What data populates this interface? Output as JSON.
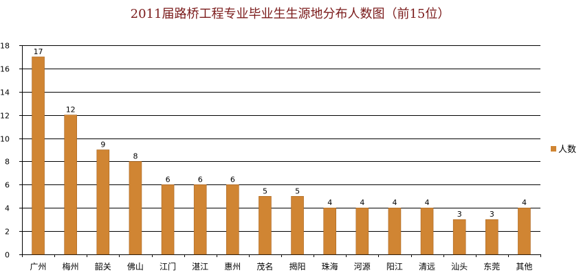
{
  "chart_data": {
    "type": "bar",
    "title": "2011届路桥工程专业毕业生生源地分布人数图（前15位）",
    "categories": [
      "广州",
      "梅州",
      "韶关",
      "佛山",
      "江门",
      "湛江",
      "惠州",
      "茂名",
      "揭阳",
      "珠海",
      "河源",
      "阳江",
      "清远",
      "汕头",
      "东莞",
      "其他"
    ],
    "series": [
      {
        "name": "人数",
        "values": [
          17,
          12,
          9,
          8,
          6,
          6,
          6,
          5,
          5,
          4,
          4,
          4,
          4,
          3,
          3,
          4
        ]
      }
    ],
    "ylim": [
      0,
      18
    ],
    "yticks": [
      0,
      2,
      4,
      6,
      8,
      10,
      12,
      14,
      16,
      18
    ],
    "grid": true,
    "legend_position": "right",
    "colors": {
      "bar": "#d08533",
      "bar_edge": "#a8641f"
    }
  }
}
